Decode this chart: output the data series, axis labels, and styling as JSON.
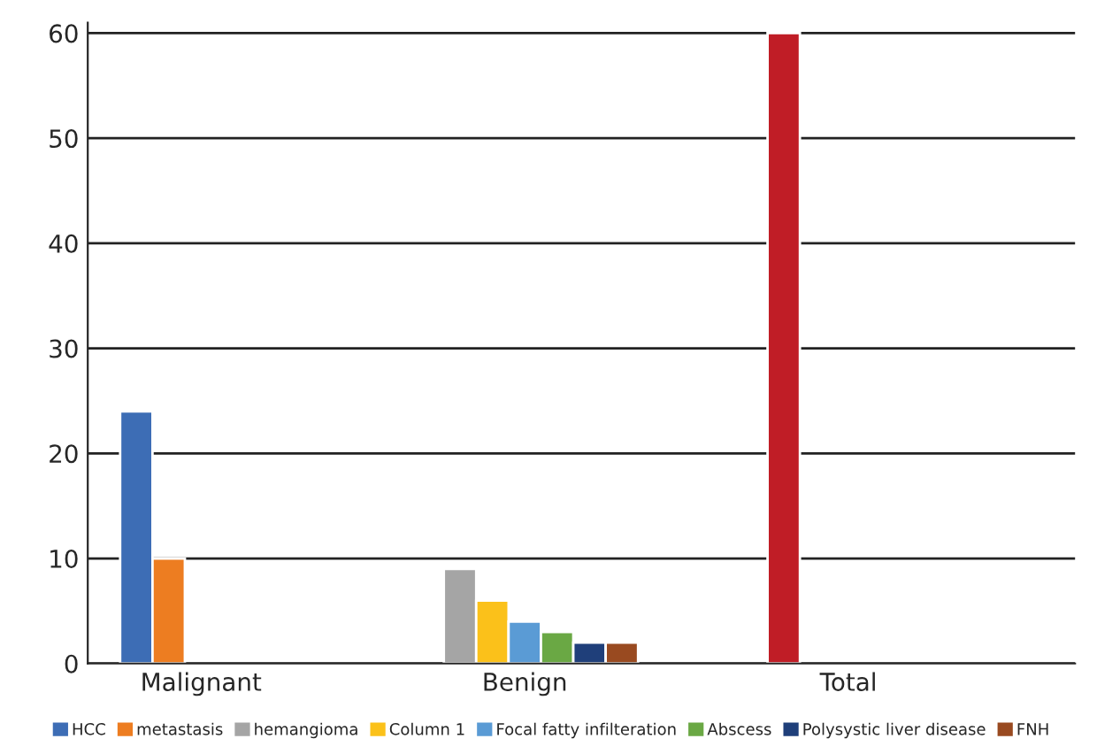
{
  "chart_data": {
    "type": "bar",
    "categories": [
      "Malignant",
      "Benign",
      "Total"
    ],
    "series": [
      {
        "name": "HCC",
        "color": "#3d6db5",
        "values": [
          24,
          null,
          null
        ]
      },
      {
        "name": "metastasis",
        "color": "#ed7d21",
        "values": [
          10,
          null,
          null
        ]
      },
      {
        "name": "hemangioma",
        "color": "#a5a5a5",
        "values": [
          null,
          9,
          null
        ]
      },
      {
        "name": "Column 1",
        "color": "#fbc11a",
        "values": [
          null,
          6,
          null
        ]
      },
      {
        "name": "Focal fatty infilteration",
        "color": "#5a9bd5",
        "values": [
          null,
          4,
          null
        ]
      },
      {
        "name": "Abscess",
        "color": "#6aa844",
        "values": [
          null,
          3,
          null
        ]
      },
      {
        "name": "Polysystic liver disease",
        "color": "#1f3f7a",
        "values": [
          null,
          2,
          null
        ]
      },
      {
        "name": "FNH",
        "color": "#994a20",
        "values": [
          null,
          2,
          null
        ]
      },
      {
        "color": "#c01d26",
        "values": [
          null,
          null,
          60
        ]
      }
    ],
    "ylim": [
      0,
      61
    ],
    "yticks": [
      0,
      10,
      20,
      30,
      40,
      50,
      60
    ],
    "grid": "y",
    "legend": "bottom"
  }
}
